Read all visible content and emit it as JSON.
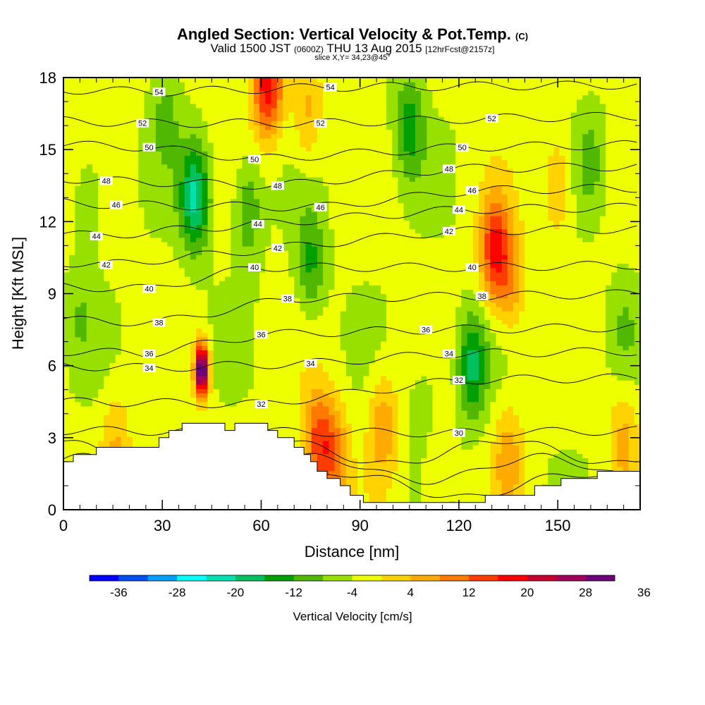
{
  "title": {
    "main": "Angled Section: Vertical Velocity & Pot.Temp.",
    "unit_tag": "(C)",
    "valid_prefix": "Valid 1500 JST",
    "valid_utc": "(0600Z)",
    "valid_date": "THU 13 Aug 2015",
    "forecast": "[12hrFcst@2157z]",
    "slice": "slice X,Y= 34,23@45°"
  },
  "chart_data": {
    "type": "heatmap",
    "xlabel": "Distance [nm]",
    "ylabel": "Height [Kft MSL]",
    "xlim": [
      0,
      175
    ],
    "ylim": [
      0,
      18
    ],
    "x_ticks": [
      "0",
      "30",
      "60",
      "90",
      "120",
      "150"
    ],
    "y_ticks": [
      "0",
      "3",
      "6",
      "9",
      "12",
      "15",
      "18"
    ],
    "colorbar": {
      "label": "Vertical Velocity [cm/s]",
      "tick_labels": [
        "-36",
        "-28",
        "-20",
        "-12",
        "-4",
        "4",
        "12",
        "20",
        "28",
        "36"
      ],
      "colors": [
        "#0000ff",
        "#0050f0",
        "#00a0ff",
        "#00ffff",
        "#00e0b0",
        "#00c060",
        "#00a000",
        "#50b800",
        "#98e000",
        "#eeff00",
        "#ffd200",
        "#ffaa00",
        "#ff7800",
        "#ff3c00",
        "#ff0000",
        "#c8002d",
        "#a0005a",
        "#6e0078"
      ]
    },
    "w_peaks": [
      {
        "x": 42,
        "z": 5.8,
        "w": 40
      },
      {
        "x": 62,
        "z": 17.7,
        "w": 22
      },
      {
        "x": 131,
        "z": 10.8,
        "w": 20
      },
      {
        "x": 77,
        "z": 2.8,
        "w": 15
      },
      {
        "x": 82,
        "z": 2.3,
        "w": 12
      },
      {
        "x": 97,
        "z": 3.5,
        "w": 10
      },
      {
        "x": 112,
        "z": 2.5,
        "w": 9
      },
      {
        "x": 135,
        "z": 2.2,
        "w": 9
      },
      {
        "x": 136,
        "z": 9.5,
        "w": 9
      },
      {
        "x": 150,
        "z": 13.5,
        "w": 8
      },
      {
        "x": 16,
        "z": 2.8,
        "w": 7
      },
      {
        "x": 74,
        "z": 16.5,
        "w": 8
      },
      {
        "x": 170,
        "z": 3.0,
        "w": 8
      },
      {
        "x": 40,
        "z": 13.0,
        "w": -18
      },
      {
        "x": 124,
        "z": 6.0,
        "w": -14
      },
      {
        "x": 105,
        "z": 16.0,
        "w": -11
      },
      {
        "x": 56,
        "z": 12.5,
        "w": -9
      },
      {
        "x": 75,
        "z": 10.3,
        "w": -10
      },
      {
        "x": 110,
        "z": 3.5,
        "w": -9
      },
      {
        "x": 160,
        "z": 14.5,
        "w": -6
      },
      {
        "x": 8,
        "z": 13.0,
        "w": -5
      },
      {
        "x": 31,
        "z": 16.5,
        "w": -6
      },
      {
        "x": 5,
        "z": 8.0,
        "w": -4
      },
      {
        "x": 170,
        "z": 7.5,
        "w": -4
      }
    ],
    "theta_labels": [
      {
        "x": 29,
        "z": 17.4,
        "text": "54"
      },
      {
        "x": 81,
        "z": 17.6,
        "text": "54"
      },
      {
        "x": 24,
        "z": 16.1,
        "text": "52"
      },
      {
        "x": 78,
        "z": 16.1,
        "text": "52"
      },
      {
        "x": 130,
        "z": 16.3,
        "text": "52"
      },
      {
        "x": 26,
        "z": 15.1,
        "text": "50"
      },
      {
        "x": 58,
        "z": 14.6,
        "text": "50"
      },
      {
        "x": 121,
        "z": 15.1,
        "text": "50"
      },
      {
        "x": 13,
        "z": 13.7,
        "text": "48"
      },
      {
        "x": 65,
        "z": 13.5,
        "text": "48"
      },
      {
        "x": 117,
        "z": 14.2,
        "text": "48"
      },
      {
        "x": 16,
        "z": 12.7,
        "text": "46"
      },
      {
        "x": 78,
        "z": 12.6,
        "text": "46"
      },
      {
        "x": 124,
        "z": 13.3,
        "text": "46"
      },
      {
        "x": 10,
        "z": 11.4,
        "text": "44"
      },
      {
        "x": 59,
        "z": 11.9,
        "text": "44"
      },
      {
        "x": 120,
        "z": 12.5,
        "text": "44"
      },
      {
        "x": 13,
        "z": 10.2,
        "text": "42"
      },
      {
        "x": 65,
        "z": 10.9,
        "text": "42"
      },
      {
        "x": 117,
        "z": 11.6,
        "text": "42"
      },
      {
        "x": 26,
        "z": 9.2,
        "text": "40"
      },
      {
        "x": 58,
        "z": 10.1,
        "text": "40"
      },
      {
        "x": 124,
        "z": 10.1,
        "text": "40"
      },
      {
        "x": 29,
        "z": 7.8,
        "text": "38"
      },
      {
        "x": 68,
        "z": 8.8,
        "text": "38"
      },
      {
        "x": 127,
        "z": 8.9,
        "text": "38"
      },
      {
        "x": 26,
        "z": 6.5,
        "text": "36"
      },
      {
        "x": 60,
        "z": 7.3,
        "text": "36"
      },
      {
        "x": 110,
        "z": 7.5,
        "text": "36"
      },
      {
        "x": 26,
        "z": 5.9,
        "text": "34"
      },
      {
        "x": 75,
        "z": 6.1,
        "text": "34"
      },
      {
        "x": 117,
        "z": 6.5,
        "text": "34"
      },
      {
        "x": 60,
        "z": 4.4,
        "text": "32"
      },
      {
        "x": 120,
        "z": 5.4,
        "text": "32"
      },
      {
        "x": 120,
        "z": 3.2,
        "text": "30"
      }
    ],
    "terrain": [
      [
        0,
        2.0
      ],
      [
        3,
        2.0
      ],
      [
        3,
        2.3
      ],
      [
        10,
        2.3
      ],
      [
        10,
        2.6
      ],
      [
        29,
        2.6
      ],
      [
        29,
        3.0
      ],
      [
        32,
        3.0
      ],
      [
        32,
        3.3
      ],
      [
        36,
        3.3
      ],
      [
        36,
        3.6
      ],
      [
        49,
        3.6
      ],
      [
        49,
        3.3
      ],
      [
        52,
        3.3
      ],
      [
        52,
        3.6
      ],
      [
        62,
        3.6
      ],
      [
        62,
        3.3
      ],
      [
        65,
        3.3
      ],
      [
        65,
        3.0
      ],
      [
        70,
        3.0
      ],
      [
        70,
        2.6
      ],
      [
        73,
        2.6
      ],
      [
        73,
        2.3
      ],
      [
        75,
        2.3
      ],
      [
        75,
        2.0
      ],
      [
        77,
        2.0
      ],
      [
        77,
        1.6
      ],
      [
        80,
        1.6
      ],
      [
        80,
        1.3
      ],
      [
        84,
        1.3
      ],
      [
        84,
        1.0
      ],
      [
        87,
        1.0
      ],
      [
        87,
        0.6
      ],
      [
        91,
        0.6
      ],
      [
        91,
        0.3
      ],
      [
        128,
        0.3
      ],
      [
        128,
        0.6
      ],
      [
        143,
        0.6
      ],
      [
        143,
        1.0
      ],
      [
        151,
        1.0
      ],
      [
        151,
        1.3
      ],
      [
        162,
        1.3
      ],
      [
        162,
        1.6
      ],
      [
        175,
        1.6
      ]
    ]
  }
}
